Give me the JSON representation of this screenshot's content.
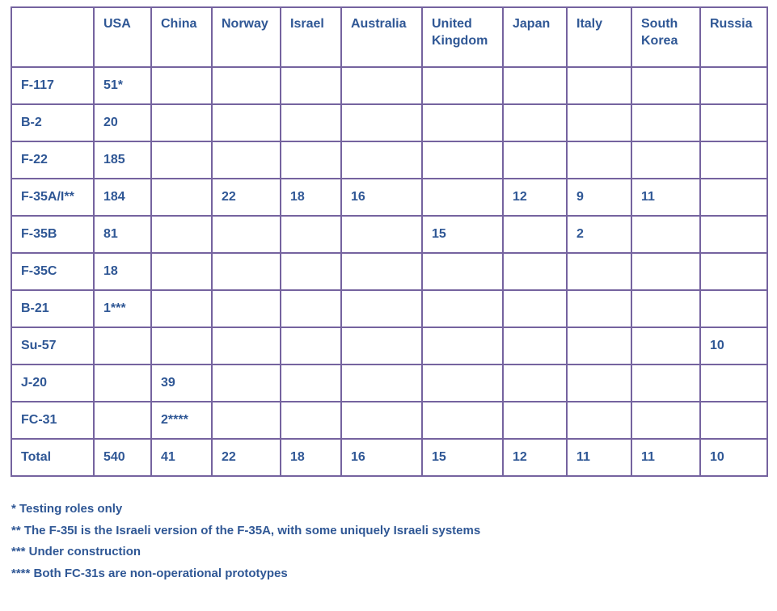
{
  "table": {
    "columns": [
      "",
      "USA",
      "China",
      "Norway",
      "Israel",
      "Australia",
      "United Kingdom",
      "Japan",
      "Italy",
      "South Korea",
      "Russia"
    ],
    "rows": [
      {
        "label": "F-117",
        "values": [
          "51*",
          "",
          "",
          "",
          "",
          "",
          "",
          "",
          "",
          ""
        ]
      },
      {
        "label": "B-2",
        "values": [
          "20",
          "",
          "",
          "",
          "",
          "",
          "",
          "",
          "",
          ""
        ]
      },
      {
        "label": "F-22",
        "values": [
          "185",
          "",
          "",
          "",
          "",
          "",
          "",
          "",
          "",
          ""
        ]
      },
      {
        "label": "F-35A/I**",
        "values": [
          "184",
          "",
          "22",
          "18",
          "16",
          "",
          "12",
          "9",
          "11",
          ""
        ]
      },
      {
        "label": "F-35B",
        "values": [
          "81",
          "",
          "",
          "",
          "",
          "15",
          "",
          "2",
          "",
          ""
        ]
      },
      {
        "label": "F-35C",
        "values": [
          "18",
          "",
          "",
          "",
          "",
          "",
          "",
          "",
          "",
          ""
        ]
      },
      {
        "label": "B-21",
        "values": [
          "1***",
          "",
          "",
          "",
          "",
          "",
          "",
          "",
          "",
          ""
        ]
      },
      {
        "label": "Su-57",
        "values": [
          "",
          "",
          "",
          "",
          "",
          "",
          "",
          "",
          "",
          "10"
        ]
      },
      {
        "label": "J-20",
        "values": [
          "",
          "39",
          "",
          "",
          "",
          "",
          "",
          "",
          "",
          ""
        ]
      },
      {
        "label": "FC-31",
        "values": [
          "",
          "2****",
          "",
          "",
          "",
          "",
          "",
          "",
          "",
          ""
        ]
      },
      {
        "label": "Total",
        "values": [
          "540",
          "41",
          "22",
          "18",
          "16",
          "15",
          "12",
          "11",
          "11",
          "10"
        ]
      }
    ]
  },
  "footnotes": [
    "* Testing roles only",
    "** The F-35I is the Israeli version of the F-35A, with some uniquely Israeli systems",
    "*** Under construction",
    "**** Both FC-31s are non-operational prototypes"
  ],
  "colors": {
    "table_border": "#75639f",
    "text_blue": "#2f5795",
    "background": "#ffffff"
  }
}
